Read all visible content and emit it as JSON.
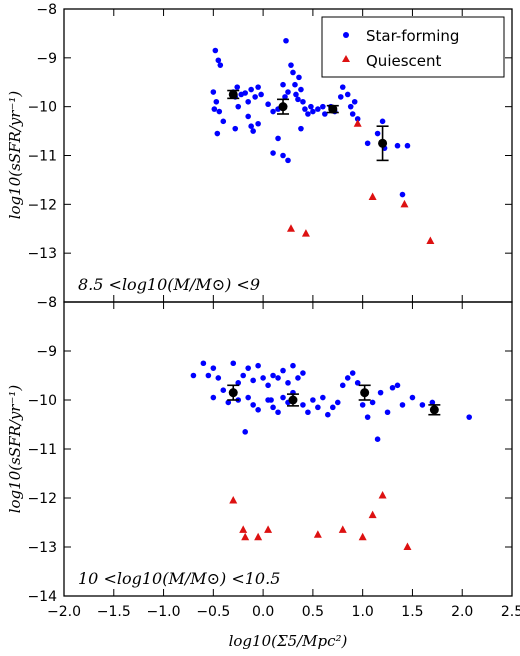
{
  "chart_data": {
    "type": "scatter",
    "xlabel": "log10(Σ5/Mpc²)",
    "ylabel": "log10(sSFR/yr⁻¹)",
    "xlim": [
      -2.0,
      2.5
    ],
    "x_ticks": [
      "−2.0",
      "−1.5",
      "−1.0",
      "−0.5",
      "0.0",
      "0.5",
      "1.0",
      "1.5",
      "2.0",
      "2.5"
    ],
    "legend": {
      "placement": "top-right",
      "entries": [
        {
          "label": "Star-forming",
          "color": "#0000ff",
          "marker": "circle"
        },
        {
          "label": "Quiescent",
          "color": "#dd1111",
          "marker": "triangle"
        }
      ]
    },
    "panels": [
      {
        "annotation": "8.5 <log10(M/M⊙) <9",
        "ylim": [
          -14,
          -8
        ],
        "y_ticks": [
          "−8",
          "−9",
          "−10",
          "−11",
          "−12",
          "−13"
        ],
        "star_forming": [
          [
            -0.48,
            -8.85
          ],
          [
            -0.45,
            -9.05
          ],
          [
            -0.43,
            -9.15
          ],
          [
            -0.5,
            -9.7
          ],
          [
            -0.47,
            -9.9
          ],
          [
            -0.49,
            -10.05
          ],
          [
            -0.44,
            -10.1
          ],
          [
            -0.46,
            -10.55
          ],
          [
            -0.4,
            -10.3
          ],
          [
            -0.3,
            -9.7
          ],
          [
            -0.28,
            -9.8
          ],
          [
            -0.26,
            -9.6
          ],
          [
            -0.22,
            -9.75
          ],
          [
            -0.18,
            -9.72
          ],
          [
            -0.15,
            -9.9
          ],
          [
            -0.12,
            -9.65
          ],
          [
            -0.08,
            -9.8
          ],
          [
            -0.05,
            -9.6
          ],
          [
            -0.02,
            -9.75
          ],
          [
            -0.25,
            -10.0
          ],
          [
            -0.28,
            -10.45
          ],
          [
            -0.15,
            -10.2
          ],
          [
            -0.12,
            -10.4
          ],
          [
            -0.1,
            -10.5
          ],
          [
            -0.05,
            -10.35
          ],
          [
            0.05,
            -9.95
          ],
          [
            0.1,
            -10.1
          ],
          [
            0.15,
            -10.05
          ],
          [
            0.2,
            -9.55
          ],
          [
            0.22,
            -9.8
          ],
          [
            0.25,
            -9.7
          ],
          [
            0.23,
            -8.65
          ],
          [
            0.28,
            -9.15
          ],
          [
            0.3,
            -9.3
          ],
          [
            0.32,
            -9.55
          ],
          [
            0.33,
            -9.75
          ],
          [
            0.35,
            -9.85
          ],
          [
            0.36,
            -9.4
          ],
          [
            0.38,
            -9.65
          ],
          [
            0.4,
            -9.9
          ],
          [
            0.42,
            -10.05
          ],
          [
            0.15,
            -10.65
          ],
          [
            0.1,
            -10.95
          ],
          [
            0.2,
            -11.0
          ],
          [
            0.25,
            -11.1
          ],
          [
            0.38,
            -10.45
          ],
          [
            0.45,
            -10.15
          ],
          [
            0.48,
            -10.0
          ],
          [
            0.5,
            -10.1
          ],
          [
            0.55,
            -10.05
          ],
          [
            0.6,
            -10.0
          ],
          [
            0.62,
            -10.15
          ],
          [
            0.68,
            -10.0
          ],
          [
            0.72,
            -10.1
          ],
          [
            0.78,
            -9.8
          ],
          [
            0.8,
            -9.6
          ],
          [
            0.85,
            -9.75
          ],
          [
            0.88,
            -10.0
          ],
          [
            0.9,
            -10.15
          ],
          [
            0.92,
            -9.9
          ],
          [
            0.95,
            -10.25
          ],
          [
            1.05,
            -10.75
          ],
          [
            1.15,
            -10.55
          ],
          [
            1.2,
            -10.3
          ],
          [
            1.22,
            -10.85
          ],
          [
            1.35,
            -10.8
          ],
          [
            1.45,
            -10.8
          ],
          [
            1.4,
            -11.8
          ]
        ],
        "quiescent": [
          [
            0.95,
            -10.35
          ],
          [
            1.1,
            -11.85
          ],
          [
            1.42,
            -12.0
          ],
          [
            0.28,
            -12.5
          ],
          [
            0.43,
            -12.6
          ],
          [
            1.68,
            -12.75
          ]
        ],
        "binned_means": [
          {
            "x": -0.3,
            "y": -9.75,
            "err": 0.08
          },
          {
            "x": 0.2,
            "y": -10.0,
            "err": 0.15
          },
          {
            "x": 0.7,
            "y": -10.05,
            "err": 0.07
          },
          {
            "x": 1.2,
            "y": -10.75,
            "err": 0.35
          }
        ]
      },
      {
        "annotation": "10 <log10(M/M⊙) <10.5",
        "ylim": [
          -14,
          -8
        ],
        "y_ticks": [
          "−8",
          "−9",
          "−10",
          "−11",
          "−12",
          "−13",
          "−14"
        ],
        "star_forming": [
          [
            -0.7,
            -9.5
          ],
          [
            -0.6,
            -9.25
          ],
          [
            -0.55,
            -9.5
          ],
          [
            -0.5,
            -9.35
          ],
          [
            -0.45,
            -9.55
          ],
          [
            -0.4,
            -9.8
          ],
          [
            -0.5,
            -9.95
          ],
          [
            -0.3,
            -9.25
          ],
          [
            -0.25,
            -9.65
          ],
          [
            -0.2,
            -9.5
          ],
          [
            -0.15,
            -9.35
          ],
          [
            -0.1,
            -9.6
          ],
          [
            -0.05,
            -9.3
          ],
          [
            0.0,
            -9.55
          ],
          [
            0.05,
            -9.7
          ],
          [
            0.1,
            -9.5
          ],
          [
            0.15,
            -9.55
          ],
          [
            0.2,
            -9.4
          ],
          [
            0.25,
            -9.65
          ],
          [
            0.3,
            -9.3
          ],
          [
            0.35,
            -9.55
          ],
          [
            0.4,
            -9.45
          ],
          [
            -0.35,
            -10.05
          ],
          [
            -0.25,
            -10.0
          ],
          [
            -0.15,
            -9.95
          ],
          [
            -0.1,
            -10.1
          ],
          [
            -0.05,
            -10.2
          ],
          [
            0.05,
            -10.0
          ],
          [
            0.1,
            -10.15
          ],
          [
            0.15,
            -10.25
          ],
          [
            0.2,
            -9.95
          ],
          [
            0.25,
            -10.05
          ],
          [
            0.3,
            -9.85
          ],
          [
            0.4,
            -10.1
          ],
          [
            0.45,
            -10.25
          ],
          [
            0.5,
            -10.0
          ],
          [
            0.55,
            -10.15
          ],
          [
            0.6,
            -9.95
          ],
          [
            0.65,
            -10.3
          ],
          [
            0.7,
            -10.15
          ],
          [
            0.75,
            -10.05
          ],
          [
            0.8,
            -9.7
          ],
          [
            0.85,
            -9.55
          ],
          [
            0.9,
            -9.45
          ],
          [
            0.95,
            -9.65
          ],
          [
            1.0,
            -10.1
          ],
          [
            1.05,
            -10.35
          ],
          [
            1.1,
            -10.05
          ],
          [
            1.15,
            -10.8
          ],
          [
            1.18,
            -9.85
          ],
          [
            1.25,
            -10.25
          ],
          [
            1.3,
            -9.75
          ],
          [
            1.35,
            -9.7
          ],
          [
            1.4,
            -10.1
          ],
          [
            1.5,
            -9.95
          ],
          [
            1.6,
            -10.1
          ],
          [
            1.7,
            -10.05
          ],
          [
            2.07,
            -10.35
          ],
          [
            -0.18,
            -10.65
          ],
          [
            0.08,
            -10.0
          ]
        ],
        "quiescent": [
          [
            -0.3,
            -12.05
          ],
          [
            -0.2,
            -12.65
          ],
          [
            -0.18,
            -12.8
          ],
          [
            0.05,
            -12.65
          ],
          [
            -0.05,
            -12.8
          ],
          [
            0.55,
            -12.75
          ],
          [
            0.8,
            -12.65
          ],
          [
            1.0,
            -12.8
          ],
          [
            1.1,
            -12.35
          ],
          [
            1.2,
            -11.95
          ],
          [
            1.45,
            -13.0
          ]
        ],
        "binned_means": [
          {
            "x": -0.3,
            "y": -9.85,
            "err": 0.15
          },
          {
            "x": 0.3,
            "y": -10.0,
            "err": 0.12
          },
          {
            "x": 1.02,
            "y": -9.85,
            "err": 0.15
          },
          {
            "x": 1.72,
            "y": -10.2,
            "err": 0.1
          }
        ]
      }
    ]
  }
}
